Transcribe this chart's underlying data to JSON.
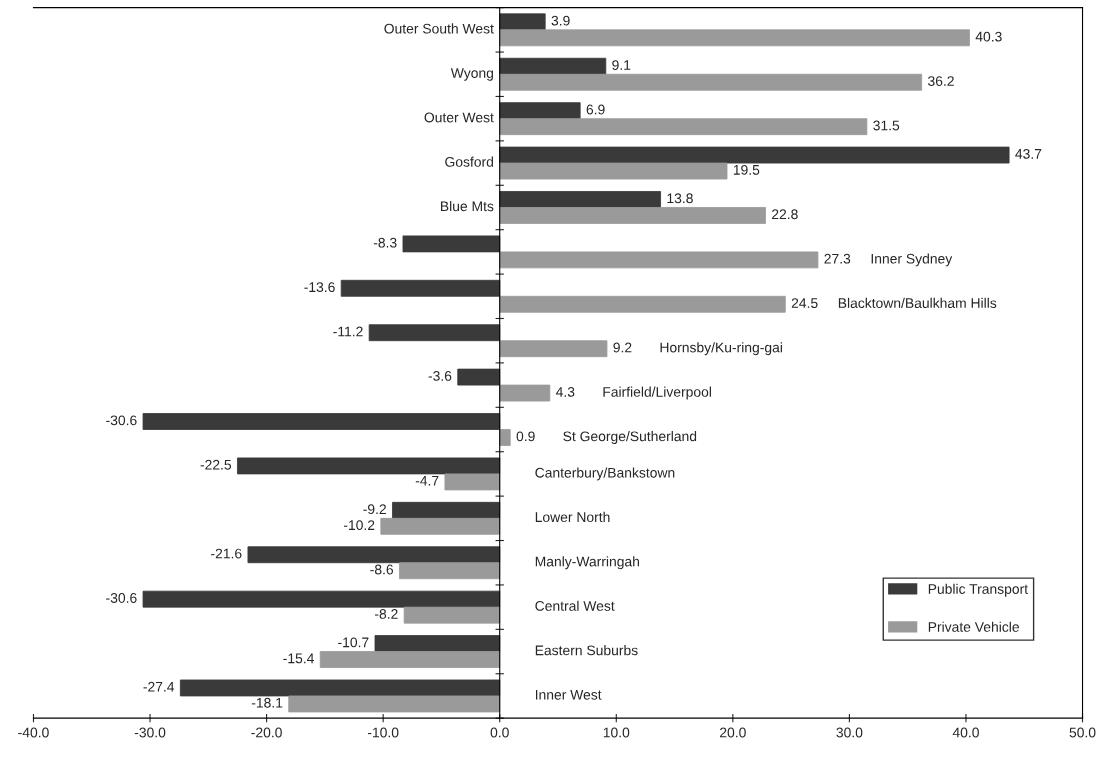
{
  "chart_data": {
    "type": "bar",
    "orientation": "horizontal",
    "categories": [
      "Outer South West",
      "Wyong",
      "Outer West",
      "Gosford",
      "Blue Mts",
      "Inner Sydney",
      "Blacktown/Baulkham Hills",
      "Hornsby/Ku-ring-gai",
      "Fairfield/Liverpool",
      "St George/Sutherland",
      "Canterbury/Bankstown",
      "Lower North",
      "Manly-Warringah",
      "Central West",
      "Eastern Suburbs",
      "Inner West"
    ],
    "series": [
      {
        "name": "Public Transport",
        "color": "#3a3a3a",
        "values": [
          3.9,
          9.1,
          6.9,
          43.7,
          13.8,
          -8.3,
          -13.6,
          -11.2,
          -3.6,
          -30.6,
          -22.5,
          -9.2,
          -21.6,
          -30.6,
          -10.7,
          -27.4
        ]
      },
      {
        "name": "Private Vehicle",
        "color": "#9a9a9a",
        "values": [
          40.3,
          36.2,
          31.5,
          19.5,
          22.8,
          27.3,
          24.5,
          9.2,
          4.3,
          0.9,
          -4.7,
          -10.2,
          -8.6,
          -8.2,
          -15.4,
          -18.1
        ]
      }
    ],
    "xlim": [
      -40,
      50
    ],
    "xticks": [
      {
        "value": -40,
        "label": "-40.0"
      },
      {
        "value": -30,
        "label": "-30.0"
      },
      {
        "value": -20,
        "label": "-20.0"
      },
      {
        "value": -10,
        "label": "-10.0"
      },
      {
        "value": 0,
        "label": "0.0"
      },
      {
        "value": 10,
        "label": "10.0"
      },
      {
        "value": 20,
        "label": "20.0"
      },
      {
        "value": 30,
        "label": "30.0"
      },
      {
        "value": 40,
        "label": "40.0"
      },
      {
        "value": 50,
        "label": "50.0"
      }
    ],
    "data_labels": true,
    "grid": false,
    "legend": "bottom right"
  }
}
